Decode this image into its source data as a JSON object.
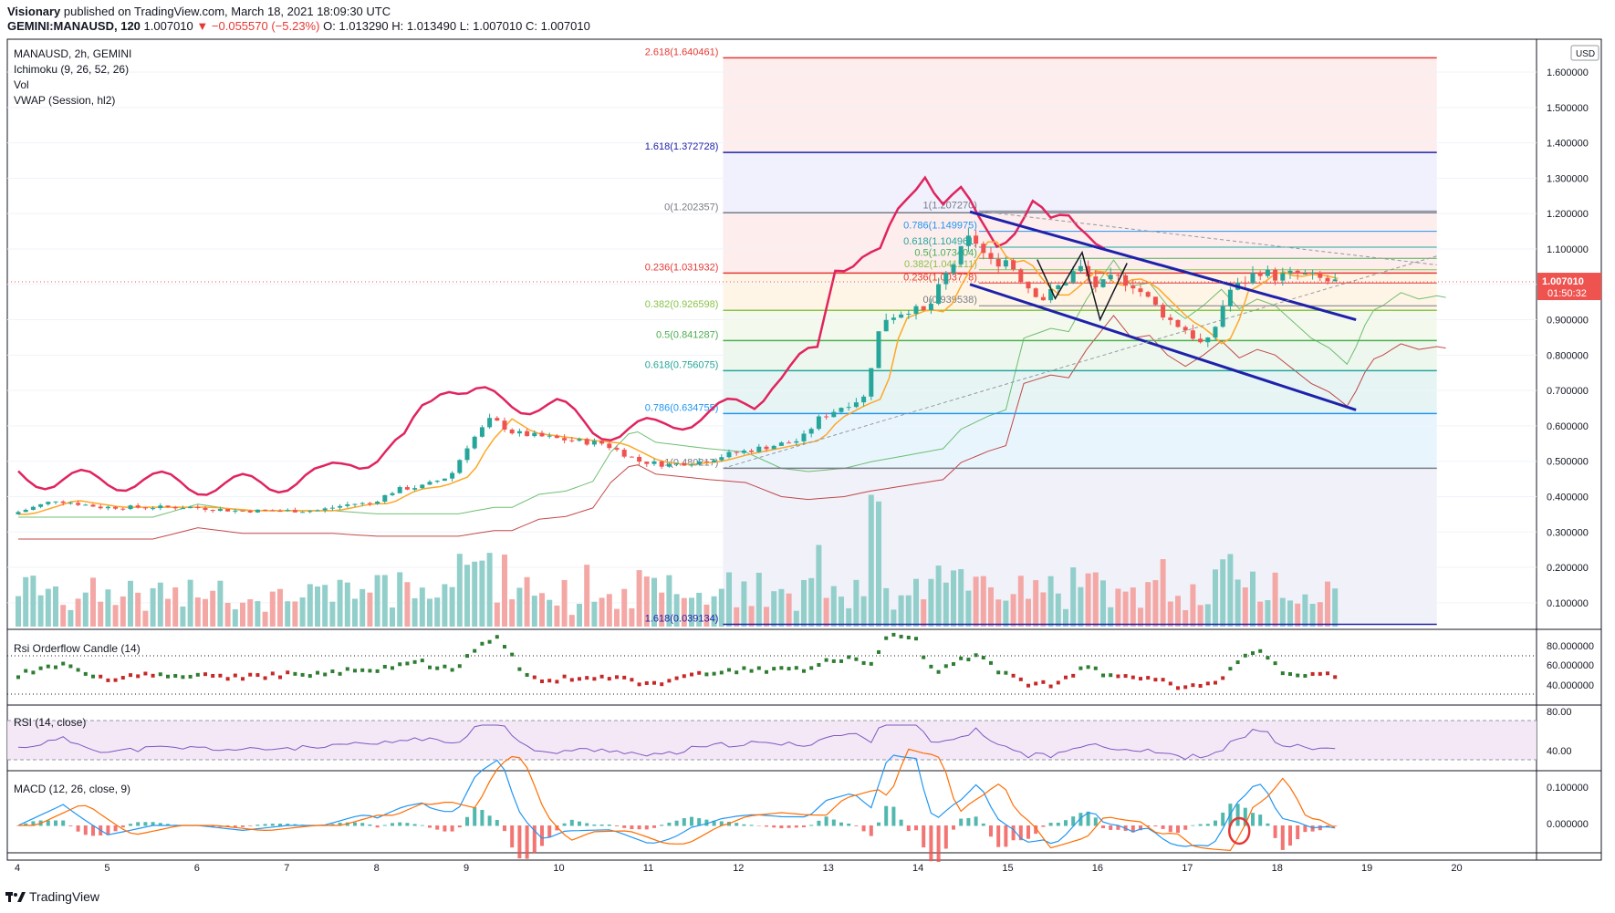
{
  "header": {
    "author": "Visionary",
    "published": "published on TradingView.com, March 18, 2021 18:09:30 UTC",
    "symbol_line": "GEMINI:MANAUSD, 120",
    "last": "1.007010",
    "change_arrow": "▼",
    "change": "−0.055570 (−5.23%)",
    "ohlc": "O: 1.013290 H: 1.013490 L: 1.007010 C: 1.007010"
  },
  "legend": {
    "title": "MANAUSD, 2h, GEMINI",
    "ichimoku": "Ichimoku (9, 26, 52, 26)",
    "vol": "Vol",
    "vwap": "VWAP (Session, hl2)",
    "rsi_orderflow": "Rsi Orderflow Candle (14)",
    "rsi": "RSI (14, close)",
    "macd": "MACD (12, 26, close, 9)"
  },
  "footer": {
    "brand": "TradingView"
  },
  "colors": {
    "up": "#26a69a",
    "down": "#ef5350",
    "red_line": "#e0245e",
    "fib_blue": "#1e22aa",
    "macd": "#2196f3",
    "signal": "#ff6d00",
    "vwap": "#ffa726",
    "cloud_green": "#4caf50",
    "cloud_red": "#b71c1c"
  },
  "chart_data": {
    "type": "candlestick",
    "title": "MANAUSD, 2h, GEMINI",
    "x_ticks": [
      "4",
      "5",
      "6",
      "7",
      "8",
      "9",
      "10",
      "11",
      "12",
      "13",
      "14",
      "15",
      "16",
      "17",
      "18",
      "19",
      "20"
    ],
    "currency": "USD",
    "price_axis": {
      "ticks": [
        "1.600000",
        "1.500000",
        "1.400000",
        "1.300000",
        "1.200000",
        "1.100000",
        "1.000000",
        "0.900000",
        "0.800000",
        "0.700000",
        "0.600000",
        "0.500000",
        "0.400000",
        "0.300000",
        "0.200000",
        "0.100000"
      ],
      "ylim": [
        0.03,
        1.68
      ],
      "last_price_label": "1.007010",
      "countdown": "01:50:32"
    },
    "price_anchors": [
      [
        4.0,
        0.35
      ],
      [
        4.5,
        0.39
      ],
      [
        5.0,
        0.37
      ],
      [
        5.5,
        0.37
      ],
      [
        6.0,
        0.37
      ],
      [
        6.5,
        0.36
      ],
      [
        7.0,
        0.36
      ],
      [
        7.4,
        0.36
      ],
      [
        7.8,
        0.38
      ],
      [
        8.0,
        0.38
      ],
      [
        8.3,
        0.42
      ],
      [
        8.6,
        0.43
      ],
      [
        8.9,
        0.46
      ],
      [
        9.1,
        0.55
      ],
      [
        9.35,
        0.62
      ],
      [
        9.6,
        0.58
      ],
      [
        9.9,
        0.57
      ],
      [
        10.2,
        0.56
      ],
      [
        10.6,
        0.55
      ],
      [
        11.0,
        0.5
      ],
      [
        11.3,
        0.49
      ],
      [
        11.7,
        0.5
      ],
      [
        12.0,
        0.52
      ],
      [
        12.4,
        0.54
      ],
      [
        12.8,
        0.56
      ],
      [
        13.0,
        0.62
      ],
      [
        13.3,
        0.66
      ],
      [
        13.5,
        0.68
      ],
      [
        13.7,
        0.9
      ],
      [
        14.0,
        0.93
      ],
      [
        14.2,
        0.92
      ],
      [
        14.4,
        1.02
      ],
      [
        14.7,
        1.14
      ],
      [
        14.9,
        1.06
      ],
      [
        15.1,
        1.07
      ],
      [
        15.3,
        1.0
      ],
      [
        15.5,
        0.96
      ],
      [
        15.7,
        1.0
      ],
      [
        15.9,
        1.05
      ],
      [
        16.1,
        0.99
      ],
      [
        16.3,
        1.02
      ],
      [
        16.5,
        1.0
      ],
      [
        16.7,
        0.95
      ],
      [
        16.9,
        0.9
      ],
      [
        17.1,
        0.87
      ],
      [
        17.3,
        0.82
      ],
      [
        17.45,
        0.9
      ],
      [
        17.55,
        0.98
      ],
      [
        17.7,
        1.0
      ],
      [
        17.9,
        1.04
      ],
      [
        18.1,
        1.02
      ],
      [
        18.3,
        1.03
      ],
      [
        18.5,
        1.02
      ],
      [
        18.7,
        1.007
      ]
    ],
    "fib_retracement_1": {
      "levels": [
        {
          "label": "2.618(1.640461)",
          "value": 1.640461
        },
        {
          "label": "1.618(1.372728)",
          "value": 1.372728
        },
        {
          "label": "0(1.202357)",
          "value": 1.202357
        },
        {
          "label": "0.236(1.031932)",
          "value": 1.031932
        },
        {
          "label": "0.382(0.926598)",
          "value": 0.926598
        },
        {
          "label": "0.5(0.841287)",
          "value": 0.841287
        },
        {
          "label": "0.618(0.756075)",
          "value": 0.756075
        },
        {
          "label": "0.786(0.634755)",
          "value": 0.634755
        },
        {
          "label": "1(0.480217)",
          "value": 0.480217
        },
        {
          "label": "1.618(0.039134)",
          "value": 0.039134
        }
      ]
    },
    "fib_retracement_2": {
      "levels": [
        {
          "label": "1(1.207270)",
          "value": 1.20727
        },
        {
          "label": "0.786(1.149975)",
          "value": 1.149975
        },
        {
          "label": "0.618(1.104961)",
          "value": 1.104961
        },
        {
          "label": "0.5(1.073404)",
          "value": 1.073404
        },
        {
          "label": "0.382(1.041211)",
          "value": 1.041211
        },
        {
          "label": "0.236(1.003778)",
          "value": 1.003778
        },
        {
          "label": "0(0.939538)",
          "value": 0.939538
        }
      ]
    },
    "rsi_orderflow_axis": [
      "80.000000",
      "60.000000",
      "40.000000"
    ],
    "rsi_axis": [
      "80.00",
      "40.00"
    ],
    "macd_axis": [
      "0.100000",
      "0.000000"
    ]
  }
}
